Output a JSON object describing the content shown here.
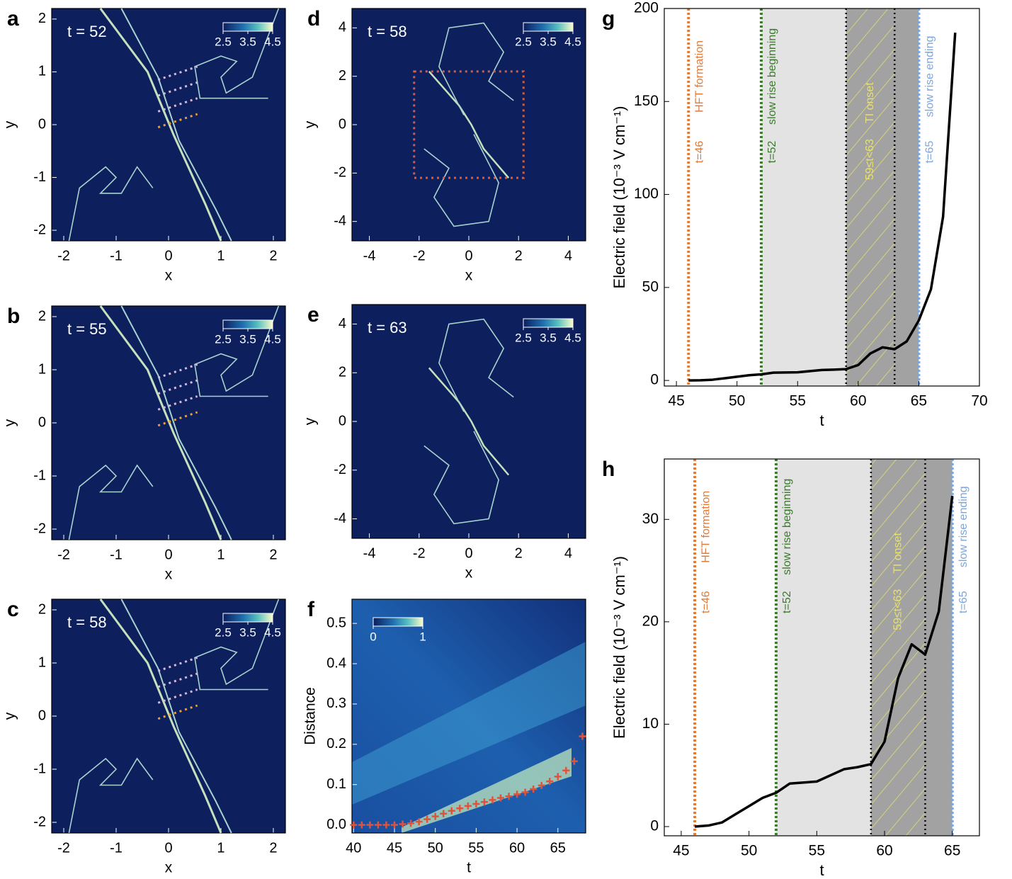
{
  "chart_data": [
    {
      "type": "image",
      "panel_label": "a",
      "time_label": "t = 52",
      "xlabel": "x",
      "ylabel": "y",
      "xlim": [
        -2.23,
        2.23
      ],
      "ylim": [
        -2.2,
        2.2
      ],
      "xticks": [
        -2,
        -1,
        0,
        1,
        2
      ],
      "yticks": [
        -2,
        -1,
        0,
        1,
        2
      ],
      "colorbar_ticks": [
        2.5,
        3.5,
        4.5
      ]
    },
    {
      "type": "image",
      "panel_label": "b",
      "time_label": "t = 55",
      "xlabel": "x",
      "ylabel": "y",
      "xlim": [
        -2.23,
        2.23
      ],
      "ylim": [
        -2.2,
        2.2
      ],
      "xticks": [
        -2,
        -1,
        0,
        1,
        2
      ],
      "yticks": [
        -2,
        -1,
        0,
        1,
        2
      ],
      "colorbar_ticks": [
        2.5,
        3.5,
        4.5
      ]
    },
    {
      "type": "image",
      "panel_label": "c",
      "time_label": "t = 58",
      "xlabel": "x",
      "ylabel": "y",
      "xlim": [
        -2.23,
        2.23
      ],
      "ylim": [
        -2.2,
        2.2
      ],
      "xticks": [
        -2,
        -1,
        0,
        1,
        2
      ],
      "yticks": [
        -2,
        -1,
        0,
        1,
        2
      ],
      "colorbar_ticks": [
        2.5,
        3.5,
        4.5
      ]
    },
    {
      "type": "image",
      "panel_label": "d",
      "time_label": "t = 58",
      "xlabel": "x",
      "ylabel": "y",
      "xlim": [
        -4.7,
        4.7
      ],
      "ylim": [
        -4.8,
        4.8
      ],
      "xticks": [
        -4,
        -2,
        0,
        2,
        4
      ],
      "yticks": [
        -4,
        -2,
        0,
        2,
        4
      ],
      "colorbar_ticks": [
        2.5,
        3.5,
        4.5
      ]
    },
    {
      "type": "image",
      "panel_label": "e",
      "time_label": "t = 63",
      "xlabel": "x",
      "ylabel": "y",
      "xlim": [
        -4.7,
        4.7
      ],
      "ylim": [
        -4.8,
        4.8
      ],
      "xticks": [
        -4,
        -2,
        0,
        2,
        4
      ],
      "yticks": [
        -4,
        -2,
        0,
        2,
        4
      ],
      "colorbar_ticks": [
        2.5,
        3.5,
        4.5
      ]
    },
    {
      "type": "heatmap",
      "panel_label": "f",
      "xlabel": "t",
      "ylabel": "Distance",
      "xlim": [
        39.8,
        68.4
      ],
      "ylim": [
        -0.02,
        0.56
      ],
      "xticks": [
        40,
        45,
        50,
        55,
        60,
        65
      ],
      "yticks": [
        {
          "value": 0,
          "label": "0.0"
        },
        0.1,
        0.2,
        0.3,
        0.4,
        0.5
      ],
      "colorbar_ticks": [
        0,
        1
      ],
      "marker_color": "#e0533a",
      "x": [
        40,
        41,
        42,
        43,
        44,
        45,
        46,
        47,
        48,
        49,
        50,
        51,
        52,
        53,
        54,
        55,
        56,
        57,
        58,
        59,
        60,
        61,
        62,
        63,
        64,
        65,
        66,
        67,
        68
      ],
      "values": [
        0,
        0,
        0,
        0,
        0,
        0,
        0.002,
        0.004,
        0.008,
        0.014,
        0.021,
        0.028,
        0.035,
        0.041,
        0.047,
        0.052,
        0.057,
        0.062,
        0.067,
        0.071,
        0.076,
        0.081,
        0.089,
        0.098,
        0.108,
        0.12,
        0.135,
        0.158,
        0.22
      ]
    },
    {
      "type": "line",
      "panel_label": "g",
      "xlabel": "t",
      "ylabel": "Electric field (10⁻³ V cm⁻¹)",
      "xlim": [
        44,
        70
      ],
      "ylim": [
        -3,
        200
      ],
      "xticks": [
        45,
        50,
        55,
        60,
        65,
        70
      ],
      "yticks": [
        0,
        50,
        100,
        150,
        200
      ],
      "color": "#000000",
      "x": [
        46,
        47,
        48,
        49,
        50,
        51,
        52,
        53,
        55,
        57,
        58,
        59,
        60,
        61,
        62,
        63,
        64,
        65,
        66,
        67,
        68
      ],
      "values": [
        0,
        0.1,
        0.4,
        1.2,
        2,
        2.8,
        3.3,
        4.2,
        4.4,
        5.6,
        5.8,
        6.1,
        8.3,
        14.5,
        17.8,
        16.8,
        21,
        32.3,
        49,
        88,
        187
      ],
      "regions": [
        {
          "x0": 52,
          "x1": 59,
          "color": "#e3e3e3"
        },
        {
          "x0": 59,
          "x1": 65,
          "color": "#a2a2a2"
        },
        {
          "x0": 59,
          "x1": 63,
          "hatch": true,
          "label": "TI onset",
          "sublabel": "59≤t<63",
          "color": "#e8e070"
        }
      ],
      "vlines": [
        {
          "x": 46,
          "color": "#e07b39",
          "label": "HFT formation",
          "sublabel": "t=46"
        },
        {
          "x": 52,
          "color": "#3b7a2c",
          "label": "slow rise beginning",
          "sublabel": "t=52"
        },
        {
          "x": 59,
          "color": "#000000"
        },
        {
          "x": 63,
          "color": "#000000"
        },
        {
          "x": 65,
          "color": "#7fa6d8",
          "label": "slow rise ending",
          "sublabel": "t=65"
        }
      ]
    },
    {
      "type": "line",
      "panel_label": "h",
      "xlabel": "t",
      "ylabel": "Electric field (10⁻³ V cm⁻¹)",
      "xlim": [
        43.75,
        67
      ],
      "ylim": [
        -0.9,
        35.9
      ],
      "xticks": [
        45,
        50,
        55,
        60,
        65
      ],
      "yticks": [
        0,
        10,
        20,
        30
      ],
      "color": "#000000",
      "x": [
        46,
        47,
        48,
        49,
        50,
        51,
        52,
        53,
        55,
        57,
        58,
        59,
        60,
        61,
        62,
        63,
        64,
        65
      ],
      "values": [
        0,
        0.1,
        0.4,
        1.2,
        2,
        2.8,
        3.3,
        4.2,
        4.4,
        5.6,
        5.8,
        6.1,
        8.3,
        14.5,
        17.8,
        16.8,
        21,
        32.3
      ],
      "regions": [
        {
          "x0": 52,
          "x1": 59,
          "color": "#e3e3e3"
        },
        {
          "x0": 59,
          "x1": 65,
          "color": "#a2a2a2"
        },
        {
          "x0": 59,
          "x1": 63,
          "hatch": true,
          "label": "TI onset",
          "sublabel": "59≤t<63",
          "color": "#e8e070"
        }
      ],
      "vlines": [
        {
          "x": 46,
          "color": "#e07b39",
          "label": "HFT formation",
          "sublabel": "t=46"
        },
        {
          "x": 52,
          "color": "#3b7a2c",
          "label": "slow rise beginning",
          "sublabel": "t=52"
        },
        {
          "x": 59,
          "color": "#000000"
        },
        {
          "x": 63,
          "color": "#000000"
        },
        {
          "x": 65,
          "color": "#7fa6d8",
          "label": "slow rise ending",
          "sublabel": "t=65"
        }
      ]
    }
  ]
}
